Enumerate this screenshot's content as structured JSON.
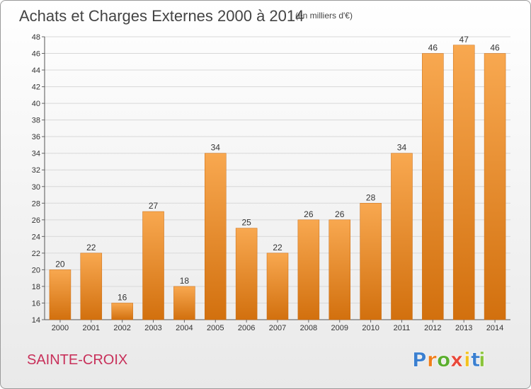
{
  "chart_data": {
    "type": "bar",
    "title": "Achats et Charges Externes 2000 à 2014",
    "subtitle": "(en milliers d'€)",
    "categories": [
      "2000",
      "2001",
      "2002",
      "2003",
      "2004",
      "2005",
      "2006",
      "2007",
      "2008",
      "2009",
      "2010",
      "2011",
      "2012",
      "2013",
      "2014"
    ],
    "values": [
      20,
      22,
      16,
      27,
      18,
      34,
      25,
      22,
      26,
      26,
      28,
      34,
      46,
      47,
      46
    ],
    "data_labels": [
      "20",
      "22",
      "16",
      "27",
      "18",
      "34",
      "25",
      "22",
      "26",
      "26",
      "28",
      "34",
      "46",
      "47",
      "46"
    ],
    "xlabel": "",
    "ylabel": "",
    "ylim": [
      14,
      48
    ],
    "yticks": [
      14,
      16,
      18,
      20,
      22,
      24,
      26,
      28,
      30,
      32,
      34,
      36,
      38,
      40,
      42,
      44,
      46,
      48
    ],
    "ytick_labels": [
      "14",
      "16",
      "18",
      "20",
      "22",
      "24",
      "26",
      "28",
      "30",
      "32",
      "34",
      "36",
      "38",
      "40",
      "42",
      "44",
      "46",
      "48"
    ],
    "grid": true,
    "bar_color_light": "#f8a850",
    "bar_color_dark": "#d2700e"
  },
  "footer": {
    "city": "SAINTE-CROIX",
    "logo_letters": [
      "P",
      "r",
      "o",
      "x",
      "i",
      "t",
      "i"
    ],
    "logo_colors": [
      "#3a7fd0",
      "#f07e1a",
      "#5aae2e",
      "#e8483a",
      "#f3c21f",
      "#3a7fd0",
      "#8ac43a"
    ],
    "logo_icon": "proxiti-logo-icon"
  }
}
